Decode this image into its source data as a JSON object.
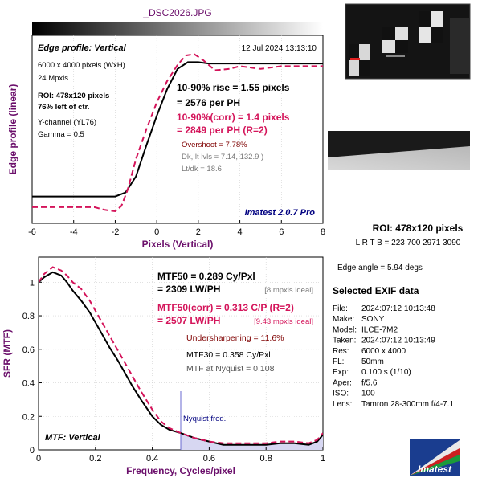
{
  "title": "_DSC2026.JPG",
  "colors": {
    "black": "#000000",
    "magenta": "#d4145a",
    "purple": "#6b0f6b",
    "navy": "#000080",
    "gray": "#666666",
    "darkred": "#7f0000",
    "nyquist_fill": "#d7d7f2"
  },
  "top_panel": {
    "heading": "Edge profile: Vertical",
    "date": "12 Jul 2024 13:13:10",
    "info_lines": [
      "6000 x 4000 pixels (WxH)",
      "24 Mpxls"
    ],
    "roi_lines": [
      "ROI: 478x120 pixels",
      "76% left of ctr."
    ],
    "channel_lines": [
      "Y-channel  (YL76)",
      "Gamma = 0.5"
    ],
    "rise": "10-90% rise = 1.55 pixels",
    "per_ph": "= 2576 per PH",
    "rise_corr": "10-90%(corr) = 1.4 pixels",
    "per_ph_corr": "= 2849 per PH  (R=2)",
    "overshoot": "Overshoot = 7.78%",
    "levels": "Dk, lt lvls = 7.14, 132.9 )",
    "ltdk": "Lt/dk = 18.6",
    "version": "Imatest 2.0.7 Pro"
  },
  "bottom_panel": {
    "mtf50": "MTF50 = 0.289 Cy/Pxl",
    "lwph": "= 2309 LW/PH",
    "ideal": "[8 mpxls ideal]",
    "mtf50_corr": "MTF50(corr) = 0.313 C/P  (R=2)",
    "lwph_corr": "= 2507 LW/PH",
    "ideal_corr": "[9.43 mpxls ideal]",
    "undersharp": "Undersharpening = 11.6%",
    "mtf30": "MTF30 = 0.358 Cy/Pxl",
    "nyq_mtf": "MTF at Nyquist = 0.108",
    "nyquist_label": "Nyquist freq.",
    "tag": "MTF: Vertical"
  },
  "side": {
    "roi": "ROI: 478x120 pixels",
    "lrtb": "L R  T B = 223 700  2971 3090",
    "edge_angle": "Edge angle = 5.94 degs",
    "exif_title": "Selected EXIF data",
    "exif": [
      [
        "File:",
        "2024:07:12 10:13:48"
      ],
      [
        "Make:",
        "SONY"
      ],
      [
        "Model:",
        "ILCE-7M2"
      ],
      [
        "Taken:",
        "2024:07:12 10:13:49"
      ],
      [
        "Res:",
        "6000 x 4000"
      ],
      [
        "FL:",
        "50mm"
      ],
      [
        "Exp:",
        "0.100 s  (1/10)"
      ],
      [
        "Aper:",
        "f/5.6"
      ],
      [
        "ISO:",
        "100"
      ],
      [
        "Lens:",
        "Tamron 28-300mm f/4-7.1"
      ]
    ],
    "logo_text": "Imatest"
  },
  "chart_data": [
    {
      "type": "line",
      "name": "edge-profile",
      "xlabel": "Pixels (Vertical)",
      "ylabel": "Edge profile (linear)",
      "xlim": [
        -6,
        8
      ],
      "xticks": [
        -6,
        -4,
        -2,
        0,
        2,
        4,
        6,
        8
      ],
      "series": [
        {
          "color": "#000000",
          "dash": false,
          "x": [
            -6,
            -4,
            -2.5,
            -2,
            -1.5,
            -1,
            -0.5,
            0,
            0.5,
            1,
            1.5,
            2,
            2.5,
            3,
            4,
            5,
            6,
            7,
            8
          ],
          "y": [
            0.0,
            0.0,
            0.0,
            0.0,
            0.03,
            0.15,
            0.38,
            0.6,
            0.8,
            0.95,
            1.0,
            1.0,
            0.99,
            0.99,
            0.99,
            0.99,
            0.99,
            0.99,
            0.99
          ]
        },
        {
          "color": "#d4145a",
          "dash": true,
          "x": [
            -6,
            -5,
            -4,
            -3,
            -2.5,
            -2,
            -1.7,
            -1.4,
            -1,
            -0.5,
            0,
            0.5,
            1,
            1.4,
            1.8,
            2.2,
            2.8,
            3.5,
            4,
            5,
            6,
            7,
            8
          ],
          "y": [
            -0.08,
            -0.08,
            -0.08,
            -0.08,
            -0.1,
            -0.11,
            -0.07,
            0.05,
            0.28,
            0.5,
            0.7,
            0.86,
            0.98,
            1.05,
            1.06,
            1.02,
            0.94,
            0.95,
            0.97,
            0.95,
            0.97,
            0.97,
            0.97
          ]
        }
      ]
    },
    {
      "type": "line",
      "name": "mtf",
      "xlabel": "Frequency, Cycles/pixel",
      "ylabel": "SFR (MTF)",
      "xlim": [
        0,
        1
      ],
      "ylim": [
        0,
        1.15
      ],
      "xticks": [
        0,
        0.2,
        0.4,
        0.6,
        0.8,
        1
      ],
      "yticks": [
        0,
        0.2,
        0.4,
        0.6,
        0.8,
        1
      ],
      "nyquist": 0.5,
      "series": [
        {
          "color": "#000000",
          "dash": false,
          "x": [
            0,
            0.02,
            0.05,
            0.08,
            0.1,
            0.12,
            0.15,
            0.18,
            0.2,
            0.22,
            0.25,
            0.28,
            0.3,
            0.33,
            0.36,
            0.4,
            0.43,
            0.46,
            0.5,
            0.55,
            0.6,
            0.65,
            0.7,
            0.75,
            0.8,
            0.85,
            0.9,
            0.95,
            0.98,
            1.0
          ],
          "y": [
            1.0,
            1.03,
            1.06,
            1.04,
            1.0,
            0.95,
            0.89,
            0.82,
            0.76,
            0.7,
            0.61,
            0.53,
            0.47,
            0.38,
            0.3,
            0.2,
            0.15,
            0.12,
            0.1,
            0.07,
            0.05,
            0.03,
            0.03,
            0.03,
            0.03,
            0.04,
            0.04,
            0.03,
            0.05,
            0.09
          ]
        },
        {
          "color": "#d4145a",
          "dash": true,
          "x": [
            0,
            0.02,
            0.05,
            0.08,
            0.1,
            0.12,
            0.15,
            0.18,
            0.2,
            0.22,
            0.25,
            0.28,
            0.3,
            0.33,
            0.36,
            0.4,
            0.43,
            0.46,
            0.5,
            0.55,
            0.6,
            0.65,
            0.7,
            0.75,
            0.8,
            0.85,
            0.9,
            0.95,
            0.98,
            1.0
          ],
          "y": [
            1.0,
            1.05,
            1.09,
            1.07,
            1.04,
            1.0,
            0.96,
            0.89,
            0.83,
            0.77,
            0.68,
            0.59,
            0.53,
            0.44,
            0.35,
            0.24,
            0.17,
            0.13,
            0.1,
            0.07,
            0.05,
            0.04,
            0.04,
            0.04,
            0.04,
            0.05,
            0.05,
            0.04,
            0.06,
            0.1
          ]
        }
      ]
    }
  ]
}
